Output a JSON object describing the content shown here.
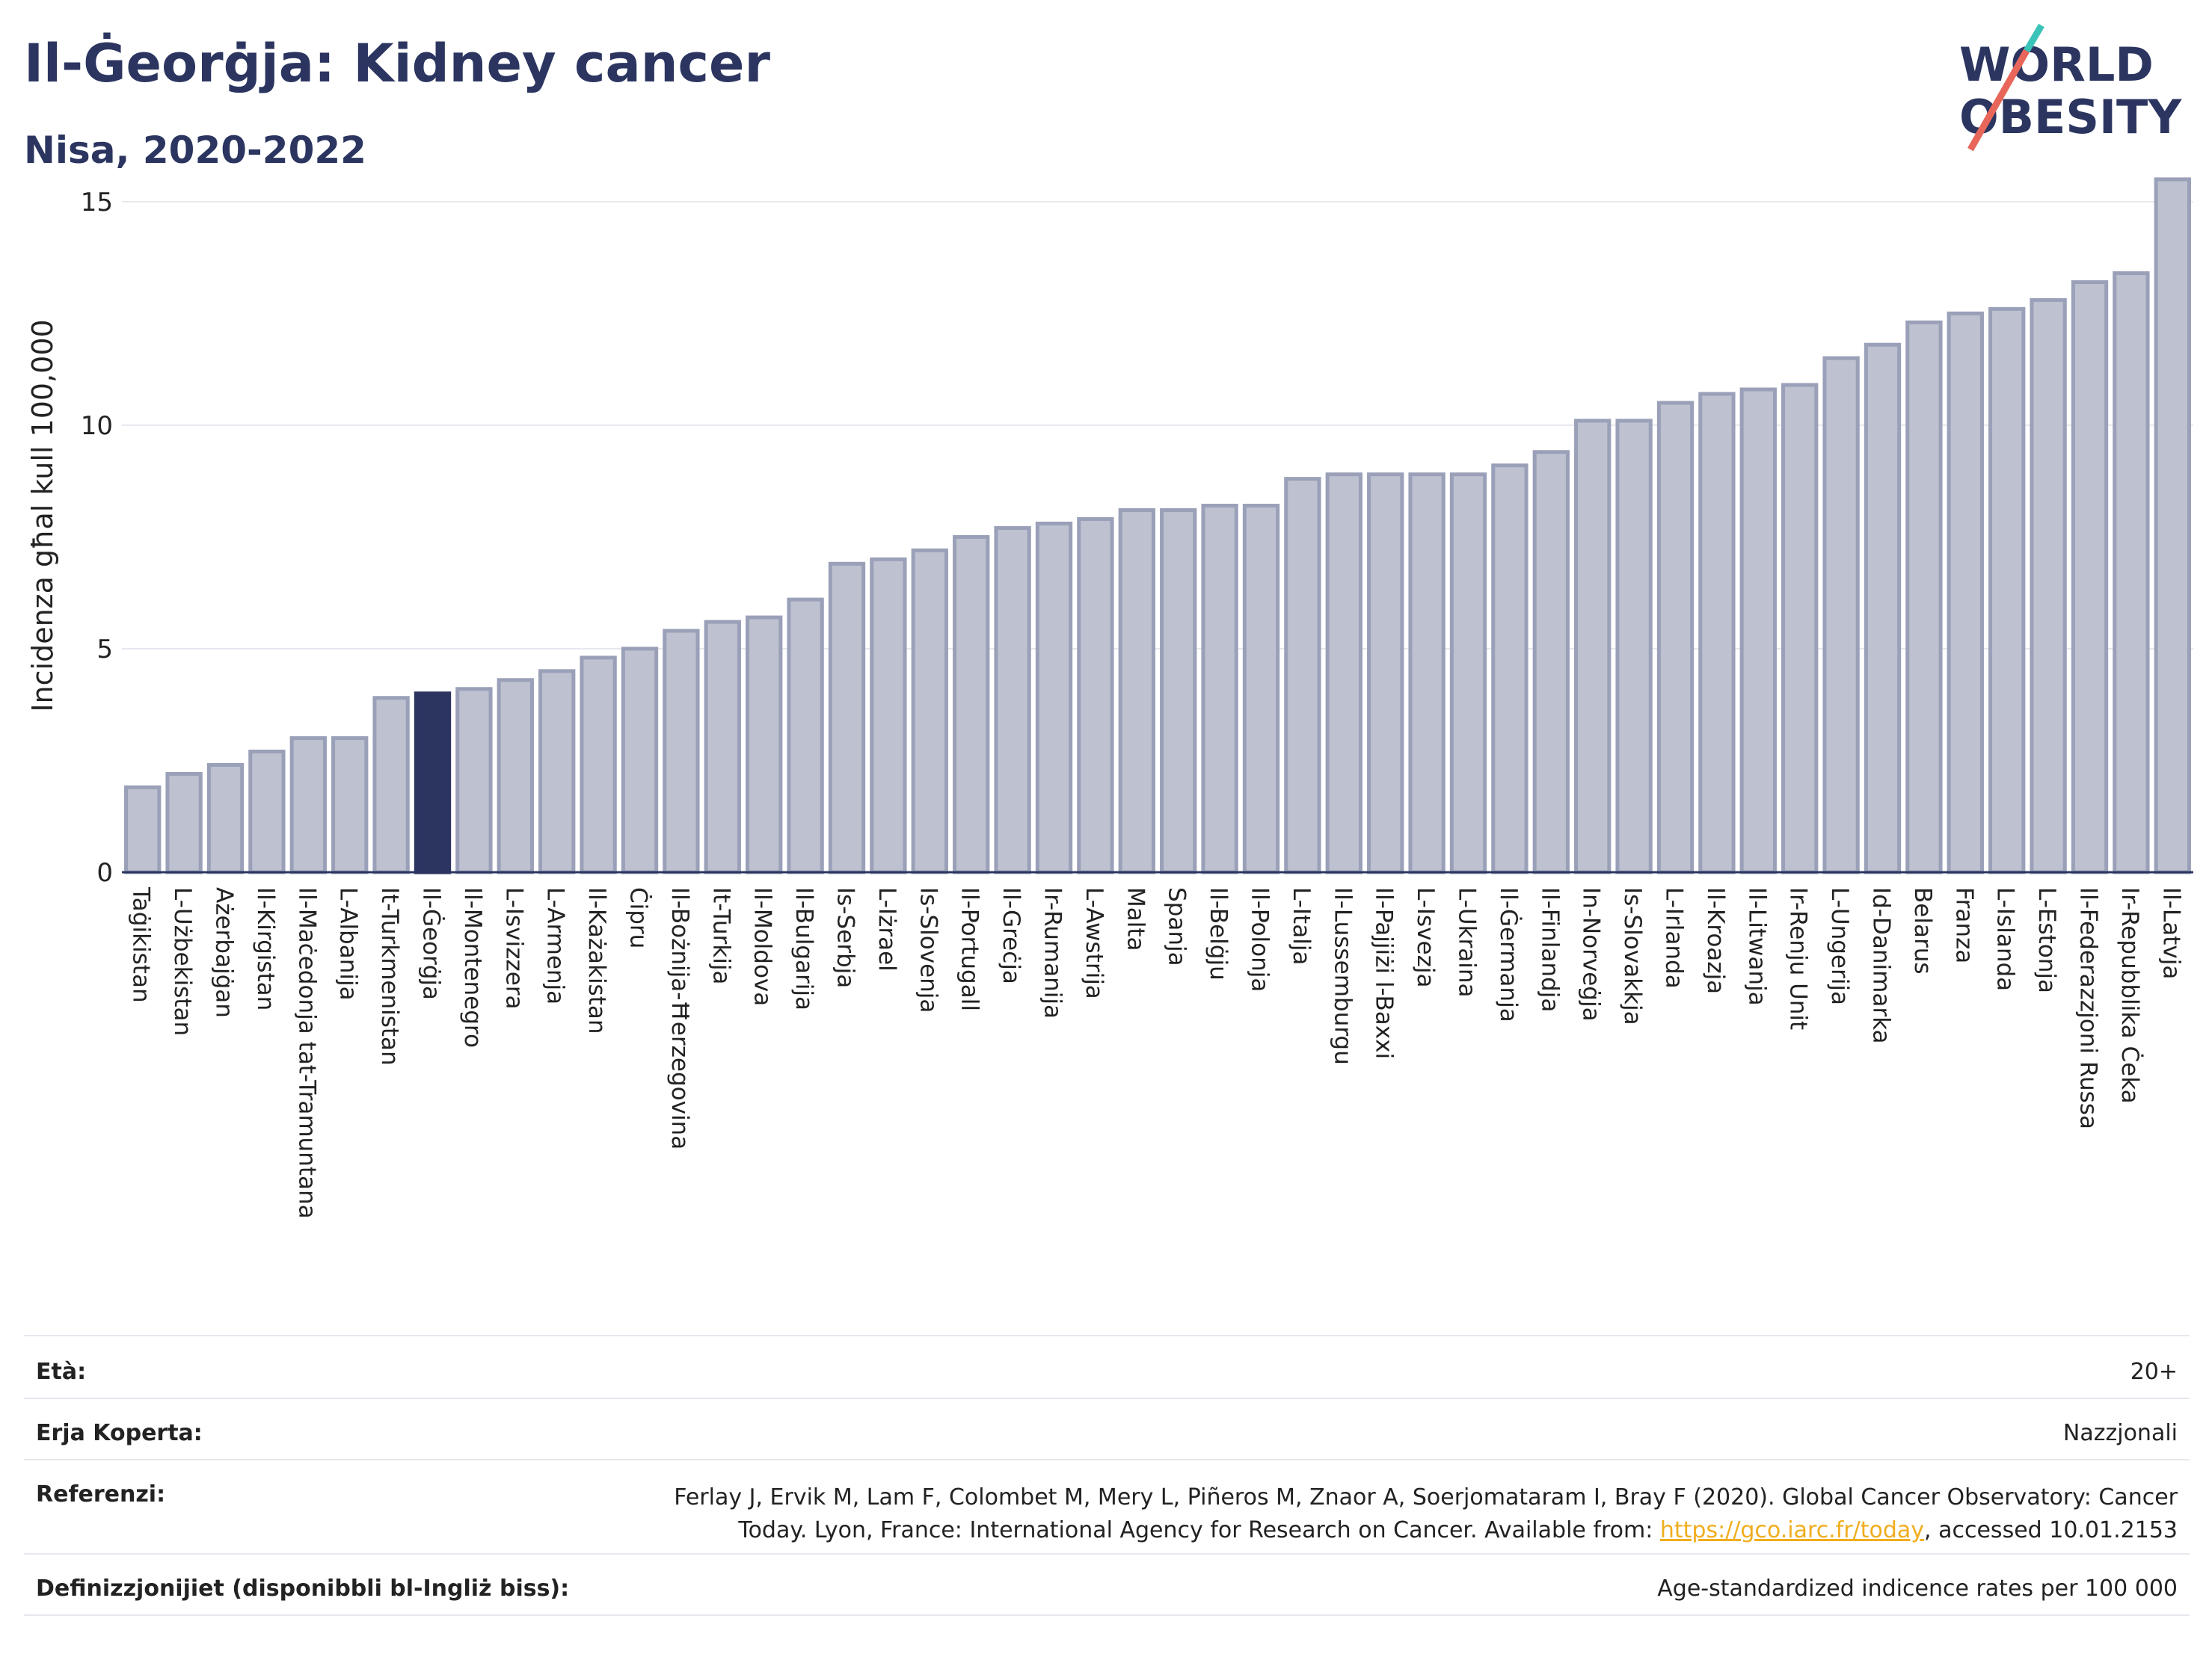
{
  "title": "Il-Ġeorġja: Kidney cancer",
  "subtitle": "Nisa, 2020-2022",
  "logo": {
    "line1": "WORLD",
    "line2": "OBESITY",
    "accent_colors": [
      "#e8665a",
      "#3cc3b8"
    ]
  },
  "colors": {
    "bar": "#bdc1d0",
    "bar_edge": "#9aa0b8",
    "highlight": "#2b3560",
    "grid": "#e6e8ee",
    "axis": "#2b3560",
    "link": "#f0ad1e"
  },
  "chart_data": {
    "type": "bar",
    "ylabel": "Incidenza għal kull 100,000",
    "ylim": [
      0,
      16
    ],
    "yticks": [
      0,
      5,
      10,
      15
    ],
    "grid": true,
    "highlight": "Il-Ġeorġja",
    "categories": [
      "Taġikistan",
      "L-Użbekistan",
      "Ażerbajġan",
      "Il-Kirgistan",
      "Il-Maċedonja tat-Tramuntana",
      "L-Albanija",
      "It-Turkmenistan",
      "Il-Ġeorġja",
      "Il-Montenegro",
      "L-Isvizzera",
      "L-Armenja",
      "Il-Każakistan",
      "Ċipru",
      "Il-Bożnija-Ħerzegovina",
      "It-Turkija",
      "Il-Moldova",
      "Il-Bulgarija",
      "Is-Serbja",
      "L-Iżrael",
      "Is-Slovenja",
      "Il-Portugall",
      "Il-Greċja",
      "Ir-Rumanija",
      "L-Awstrija",
      "Malta",
      "Spanja",
      "Il-Belġju",
      "Il-Polonja",
      "L-Italja",
      "Il-Lussemburgu",
      "Il-Pajjiżi l-Baxxi",
      "L-Isvezja",
      "L-Ukraina",
      "Il-Ġermanja",
      "Il-Finlandja",
      "In-Norveġja",
      "Is-Slovakkja",
      "L-Irlanda",
      "Il-Kroazja",
      "Il-Litwanja",
      "Ir-Renju Unit",
      "L-Ungerija",
      "Id-Danimarka",
      "Belarus",
      "Franza",
      "L-Islanda",
      "L-Estonja",
      "Il-Federazzjoni Russa",
      "Ir-Repubblika Ċeka",
      "Il-Latvja"
    ],
    "values": [
      1.9,
      2.2,
      2.4,
      2.7,
      3.0,
      3.0,
      3.9,
      4.0,
      4.1,
      4.3,
      4.5,
      4.8,
      5.0,
      5.4,
      5.6,
      5.7,
      6.1,
      6.9,
      7.0,
      7.2,
      7.5,
      7.7,
      7.8,
      7.9,
      8.1,
      8.1,
      8.2,
      8.2,
      8.8,
      8.9,
      8.9,
      8.9,
      8.9,
      9.1,
      9.4,
      10.1,
      10.1,
      10.5,
      10.7,
      10.8,
      10.9,
      11.5,
      11.8,
      12.3,
      12.5,
      12.6,
      12.8,
      13.2,
      13.4,
      15.5
    ]
  },
  "meta": {
    "age_label": "Età:",
    "age_value": "20+",
    "coverage_label": "Erja Koperta:",
    "coverage_value": "Nazzjonali",
    "references_label": "Referenzi:",
    "references_line1": "Ferlay J, Ervik M, Lam F, Colombet M, Mery L, Piñeros M, Znaor A, Soerjomataram I, Bray F (2020). Global Cancer Observatory: Cancer",
    "references_line2_pre": "Today. Lyon, France: International Agency for Research on Cancer. Available from: ",
    "references_link": "https://gco.iarc.fr/today",
    "references_line2_post": ", accessed 10.01.2153",
    "definitions_label": "Definizzjonijiet (disponibbli bl-Ingliż biss):",
    "definitions_value": "Age-standardized indicence rates per 100 000"
  }
}
